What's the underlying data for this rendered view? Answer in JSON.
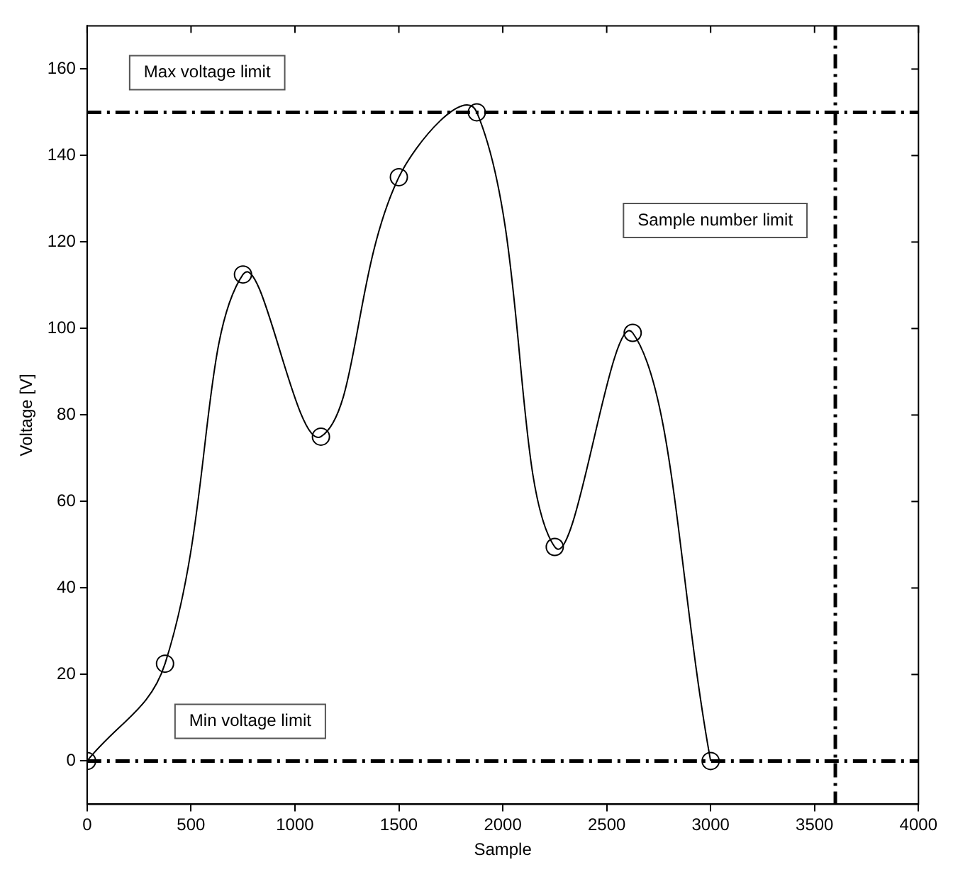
{
  "chart_data": {
    "type": "line",
    "xlabel": "Sample",
    "ylabel": "Voltage [V]",
    "x": [
      0,
      375,
      750,
      1125,
      1500,
      1875,
      2250,
      2625,
      3000
    ],
    "series": [
      {
        "color": "#000000",
        "values": [
          0,
          22.5,
          112.5,
          75,
          135,
          150,
          49.5,
          99,
          0
        ]
      }
    ],
    "xlim": [
      0,
      4000
    ],
    "xticks": [
      0,
      500,
      1000,
      1500,
      2000,
      2500,
      3000,
      3500,
      4000
    ],
    "ylim": [
      -10,
      170
    ],
    "yticks": [
      0,
      20,
      40,
      60,
      80,
      100,
      120,
      140,
      160
    ],
    "grid": false,
    "legend": false,
    "marker": "circle",
    "line_style": "solid",
    "ref_lines": [
      {
        "axis": "y",
        "value": 150,
        "label": "Max voltage limit",
        "color": "#000000"
      },
      {
        "axis": "y",
        "value": 0,
        "label": "Min voltage limit",
        "color": "#000000"
      },
      {
        "axis": "x",
        "value": 3600,
        "label": "Sample number limit",
        "color": "#000000"
      }
    ]
  }
}
